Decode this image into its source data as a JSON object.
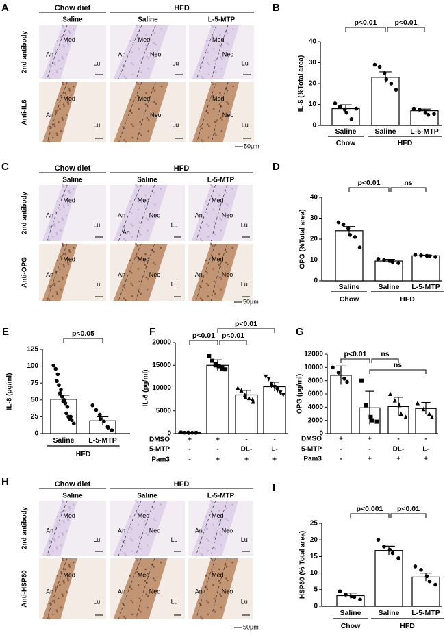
{
  "histology": [
    {
      "panel": "A",
      "groups": [
        {
          "label": "Chow diet",
          "span": 1
        },
        {
          "label": "HFD",
          "span": 2
        }
      ],
      "columns": [
        "Saline",
        "Saline",
        "L-5-MTP"
      ],
      "rows": [
        {
          "label": "2nd antibody",
          "cells": [
            [
              "An",
              "Med",
              "Lu"
            ],
            [
              "An",
              "Med",
              "Neo",
              "Lu"
            ],
            [
              "Med",
              "Neo",
              "Lu"
            ]
          ]
        },
        {
          "label": "Anti-IL6",
          "cells": [
            [
              "Med",
              "An",
              "Lu"
            ],
            [
              "Med",
              "Neo",
              "Lu"
            ],
            [
              "Med",
              "Neo",
              "Lu"
            ]
          ]
        }
      ],
      "scale_bar": "50μm"
    },
    {
      "panel": "C",
      "groups": [
        {
          "label": "Chow diet",
          "span": 1
        },
        {
          "label": "HFD",
          "span": 2
        }
      ],
      "columns": [
        "Saline",
        "Saline",
        "L-5-MTP"
      ],
      "rows": [
        {
          "label": "2nd antibody",
          "cells": [
            [
              "Med",
              "An",
              "Lu"
            ],
            [
              "An",
              "Med",
              "Neo",
              "An",
              "Lu"
            ],
            [
              "An",
              "Med",
              "Neo",
              "Lu"
            ]
          ]
        },
        {
          "label": "Anti-OPG",
          "cells": [
            [
              "Med",
              "An",
              "Lu"
            ],
            [
              "Med",
              "Neo",
              "An",
              "Lu"
            ],
            [
              "Med",
              "An",
              "Neo",
              "Lu"
            ]
          ]
        }
      ],
      "scale_bar": "50μm"
    },
    {
      "panel": "H",
      "groups": [
        {
          "label": "Chow diet",
          "span": 1
        },
        {
          "label": "HFD",
          "span": 2
        }
      ],
      "columns": [
        "Saline",
        "Saline",
        "L-5-MTP"
      ],
      "rows": [
        {
          "label": "2nd antibody",
          "cells": [
            [
              "Med",
              "An",
              "Lu"
            ],
            [
              "Med",
              "An",
              "Neo",
              "Lu"
            ],
            [
              "An",
              "Med",
              "Neo",
              "Lu"
            ]
          ]
        },
        {
          "label": "Anti-HSP60",
          "cells": [
            [
              "An",
              "Med",
              "Lu"
            ],
            [
              "Med",
              "An",
              "Neo",
              "Lu"
            ],
            [
              "An",
              "Med",
              "Neo",
              "Lu"
            ]
          ]
        }
      ],
      "scale_bar": "50μm"
    }
  ],
  "chart_data": [
    {
      "type": "bar",
      "panel": "B",
      "ylabel": "IL-6 (%Total area)",
      "categories": [
        "Saline",
        "Saline",
        "L-5-MTP"
      ],
      "values": [
        8,
        23,
        7
      ],
      "errors": [
        1.8,
        2.6,
        0.8
      ],
      "points": [
        [
          10.5,
          9,
          7.5,
          6,
          3,
          8
        ],
        [
          29,
          28,
          25,
          22,
          20,
          17
        ],
        [
          8,
          7.5,
          6,
          5,
          5.5
        ]
      ],
      "markers": [
        "circle",
        "circle",
        "circle"
      ],
      "ylim": [
        0,
        40
      ],
      "yticks": [
        0,
        10,
        20,
        30,
        40
      ],
      "color": "#ffffff",
      "annotations": [
        {
          "text": "p<0.01",
          "from": 0,
          "to": 1
        },
        {
          "text": "p<0.01",
          "from": 1,
          "to": 2
        }
      ],
      "groups": [
        {
          "label": "Chow",
          "from": 0,
          "to": 0
        },
        {
          "label": "HFD",
          "from": 1,
          "to": 2
        }
      ]
    },
    {
      "type": "bar",
      "panel": "D",
      "ylabel": "OPG (%Total area)",
      "categories": [
        "Saline",
        "Saline",
        "L-5-MTP"
      ],
      "values": [
        24,
        9.5,
        12
      ],
      "errors": [
        2,
        0.8,
        0.3
      ],
      "points": [
        [
          28,
          27,
          25,
          22,
          21,
          16
        ],
        [
          10.5,
          10,
          9.5,
          9,
          8.5
        ],
        [
          12.5,
          12.2,
          12,
          11.8,
          11.5
        ]
      ],
      "markers": [
        "circle",
        "circle",
        "circle"
      ],
      "ylim": [
        0,
        40
      ],
      "yticks": [
        0,
        10,
        20,
        30,
        40
      ],
      "color": "#ffffff",
      "annotations": [
        {
          "text": "p<0.01",
          "from": 0,
          "to": 1
        },
        {
          "text": "ns",
          "from": 1,
          "to": 2
        }
      ],
      "groups": [
        {
          "label": "Chow",
          "from": 0,
          "to": 0
        },
        {
          "label": "HFD",
          "from": 1,
          "to": 2
        }
      ]
    },
    {
      "type": "bar",
      "panel": "E",
      "ylabel": "IL-6 (pg/ml)",
      "categories": [
        "Saline",
        "L-5-MTP"
      ],
      "values": [
        51,
        19
      ],
      "errors": [
        6,
        6
      ],
      "points": [
        [
          101,
          96,
          88,
          78,
          72,
          65,
          60,
          55,
          50,
          48,
          45,
          40,
          30,
          25,
          25,
          22,
          20,
          15
        ],
        [
          42,
          35,
          28,
          22,
          18,
          10,
          8,
          5
        ]
      ],
      "markers": [
        "circle",
        "circle"
      ],
      "ylim": [
        0,
        125
      ],
      "yticks": [
        0,
        25,
        50,
        75,
        100,
        125
      ],
      "color": "#ffffff",
      "annotations": [
        {
          "text": "p<0.05",
          "from": 0,
          "to": 1
        }
      ],
      "groups": [
        {
          "label": "HFD",
          "from": 0,
          "to": 1
        }
      ]
    },
    {
      "type": "bar",
      "panel": "F",
      "ylabel": "IL-6 (pg/ml)",
      "categories": [
        null,
        null,
        null,
        null
      ],
      "values": [
        200,
        15000,
        8500,
        10300
      ],
      "errors": [
        100,
        1200,
        1000,
        1000
      ],
      "points": [
        [
          300,
          200,
          250,
          150,
          200,
          180,
          220
        ],
        [
          17000,
          16000,
          15000,
          15200,
          14800,
          14500,
          14300,
          14100
        ],
        [
          10000,
          9500,
          8500,
          8000,
          7800,
          7500,
          7000
        ],
        [
          12500,
          12000,
          11000,
          10500,
          10200,
          10000,
          9500,
          9000,
          8500
        ]
      ],
      "markers": [
        "circle",
        "square",
        "triangle",
        "triangle-down"
      ],
      "ylim": [
        0,
        20000
      ],
      "yticks": [
        0,
        5000,
        10000,
        15000,
        20000
      ],
      "color": "#ffffff",
      "annotations": [
        {
          "text": "p<0.01",
          "from": 0,
          "to": 1
        },
        {
          "text": "p<0.01",
          "from": 1,
          "to": 2
        },
        {
          "text": "p<0.01",
          "from": 1,
          "to": 3
        }
      ],
      "conditions": [
        {
          "name": "DMSO",
          "values": [
            "+",
            "+",
            "-",
            "-"
          ]
        },
        {
          "name": "5-MTP",
          "values": [
            "-",
            "-",
            "DL-",
            "L-"
          ]
        },
        {
          "name": "Pam3",
          "values": [
            "-",
            "+",
            "+",
            "+"
          ]
        }
      ]
    },
    {
      "type": "bar",
      "panel": "G",
      "ylabel": "OPG (pg/ml)",
      "categories": [
        null,
        null,
        null,
        null
      ],
      "values": [
        8800,
        3900,
        4100,
        3800
      ],
      "errors": [
        1400,
        2500,
        1400,
        900
      ],
      "points": [
        [
          10000,
          9200,
          8300,
          7800
        ],
        [
          8000,
          4300,
          2500,
          2000,
          1800
        ],
        [
          6000,
          5000,
          4300,
          3000,
          2500
        ],
        [
          4600,
          3700,
          3000,
          2500
        ]
      ],
      "markers": [
        "circle",
        "square",
        "triangle",
        "triangle"
      ],
      "ylim": [
        0,
        12000
      ],
      "yticks": [
        0,
        2000,
        4000,
        6000,
        8000,
        10000,
        12000
      ],
      "color": "#ffffff",
      "annotations": [
        {
          "text": "p<0.01",
          "from": 0,
          "to": 1
        },
        {
          "text": "ns",
          "from": 1,
          "to": 2
        },
        {
          "text": "ns",
          "from": 1,
          "to": 3
        }
      ],
      "conditions": [
        {
          "name": "DMSO",
          "values": [
            "+",
            "+",
            "-",
            "-"
          ]
        },
        {
          "name": "5-MTP",
          "values": [
            "-",
            "-",
            "DL-",
            "L-"
          ]
        },
        {
          "name": "Pam3",
          "values": [
            "-",
            "+",
            "+",
            "+"
          ]
        }
      ]
    },
    {
      "type": "bar",
      "panel": "I",
      "ylabel": "HSP60 (% Total area)",
      "categories": [
        "Saline",
        "Saline",
        "L-5-MTP"
      ],
      "values": [
        3.2,
        16.8,
        8.8
      ],
      "errors": [
        0.8,
        1.3,
        1.2
      ],
      "points": [
        [
          4.5,
          3.5,
          3,
          2.8,
          2
        ],
        [
          20,
          18,
          17,
          16,
          14.5
        ],
        [
          12,
          11,
          9,
          7.5,
          6.5
        ]
      ],
      "markers": [
        "circle",
        "circle",
        "circle"
      ],
      "ylim": [
        0,
        25
      ],
      "yticks": [
        0,
        5,
        10,
        15,
        20,
        25
      ],
      "color": "#ffffff",
      "annotations": [
        {
          "text": "p<0.001",
          "from": 0,
          "to": 1
        },
        {
          "text": "p<0.01",
          "from": 1,
          "to": 2
        }
      ],
      "groups": [
        {
          "label": "Chow",
          "from": 0,
          "to": 0
        },
        {
          "label": "HFD",
          "from": 1,
          "to": 2
        }
      ]
    }
  ]
}
